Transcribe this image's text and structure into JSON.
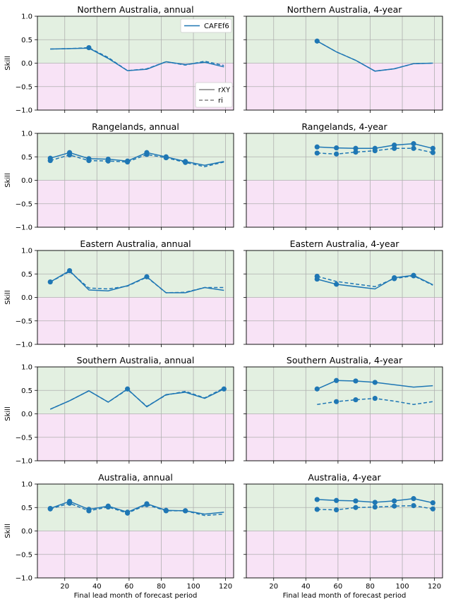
{
  "figure": {
    "ylabel": "Skill",
    "xlabel": "Final lead month of forecast period",
    "legend_model": "CAFEf6",
    "legend_rxy": "rXY",
    "legend_ri": "ri",
    "colors": {
      "line": "#1f77b4",
      "positive_bg": "#e3f0e1",
      "negative_bg": "#f8e3f6",
      "grid": "#b0b0b0",
      "legend_gray": "#808080"
    }
  },
  "chart_data": [
    {
      "type": "line",
      "title": "Northern Australia, annual",
      "xlim": [
        3,
        125
      ],
      "ylim": [
        -1,
        1
      ],
      "xticks": [
        20,
        40,
        60,
        80,
        100,
        120
      ],
      "yticks": [
        -1.0,
        -0.5,
        0.0,
        0.5,
        1.0
      ],
      "x": [
        11,
        23,
        35,
        47,
        59,
        71,
        83,
        95,
        107,
        119
      ],
      "series": [
        {
          "name": "rXY",
          "style": "solid",
          "values": [
            0.3,
            0.31,
            0.32,
            0.1,
            -0.16,
            -0.13,
            0.03,
            -0.03,
            0.02,
            -0.08
          ]
        },
        {
          "name": "ri",
          "style": "dashed",
          "values": [
            0.3,
            0.31,
            0.33,
            0.12,
            -0.16,
            -0.12,
            0.03,
            -0.04,
            0.04,
            -0.05
          ]
        }
      ],
      "markers_x": [
        35
      ],
      "markers_y": [
        0.33
      ]
    },
    {
      "type": "line",
      "title": "Northern Australia, 4-year",
      "xlim": [
        3,
        125
      ],
      "ylim": [
        -1,
        1
      ],
      "xticks": [
        20,
        40,
        60,
        80,
        100,
        120
      ],
      "yticks": [
        -1.0,
        -0.5,
        0.0,
        0.5,
        1.0
      ],
      "x": [
        47,
        59,
        71,
        83,
        95,
        107,
        119
      ],
      "series": [
        {
          "name": "rXY",
          "style": "solid",
          "values": [
            0.47,
            0.24,
            0.06,
            -0.17,
            -0.12,
            -0.01,
            0.0
          ]
        },
        {
          "name": "ri",
          "style": "dashed",
          "values": [
            0.47,
            0.24,
            0.06,
            -0.17,
            -0.12,
            -0.01,
            0.0
          ]
        }
      ],
      "markers_x": [
        47
      ],
      "markers_y": [
        0.47
      ]
    },
    {
      "type": "line",
      "title": "Rangelands, annual",
      "xlim": [
        3,
        125
      ],
      "ylim": [
        -1,
        1
      ],
      "xticks": [
        20,
        40,
        60,
        80,
        100,
        120
      ],
      "yticks": [
        -1.0,
        -0.5,
        0.0,
        0.5,
        1.0
      ],
      "x": [
        11,
        23,
        35,
        47,
        59,
        71,
        83,
        95,
        107,
        119
      ],
      "series": [
        {
          "name": "rXY",
          "style": "solid",
          "values": [
            0.47,
            0.59,
            0.46,
            0.45,
            0.41,
            0.59,
            0.5,
            0.4,
            0.32,
            0.4
          ]
        },
        {
          "name": "ri",
          "style": "dashed",
          "values": [
            0.42,
            0.54,
            0.42,
            0.41,
            0.39,
            0.55,
            0.48,
            0.38,
            0.29,
            0.39
          ]
        }
      ],
      "markers_x": [
        11,
        23,
        35,
        47,
        59,
        71,
        83,
        95,
        11,
        23,
        35,
        47,
        59,
        71,
        83,
        95
      ],
      "markers_y": [
        0.47,
        0.59,
        0.46,
        0.45,
        0.41,
        0.59,
        0.5,
        0.4,
        0.42,
        0.54,
        0.42,
        0.41,
        0.39,
        0.55,
        0.48,
        0.38
      ]
    },
    {
      "type": "line",
      "title": "Rangelands, 4-year",
      "xlim": [
        3,
        125
      ],
      "ylim": [
        -1,
        1
      ],
      "xticks": [
        20,
        40,
        60,
        80,
        100,
        120
      ],
      "yticks": [
        -1.0,
        -0.5,
        0.0,
        0.5,
        1.0
      ],
      "x": [
        47,
        59,
        71,
        83,
        95,
        107,
        119
      ],
      "series": [
        {
          "name": "rXY",
          "style": "solid",
          "values": [
            0.71,
            0.69,
            0.68,
            0.68,
            0.75,
            0.78,
            0.68
          ]
        },
        {
          "name": "ri",
          "style": "dashed",
          "values": [
            0.58,
            0.56,
            0.6,
            0.63,
            0.68,
            0.68,
            0.59
          ]
        }
      ],
      "markers_x": [
        47,
        59,
        71,
        83,
        95,
        107,
        119,
        47,
        59,
        71,
        83,
        95,
        107,
        119
      ],
      "markers_y": [
        0.71,
        0.69,
        0.68,
        0.68,
        0.75,
        0.78,
        0.68,
        0.58,
        0.56,
        0.6,
        0.63,
        0.68,
        0.68,
        0.59
      ]
    },
    {
      "type": "line",
      "title": "Eastern Australia, annual",
      "xlim": [
        3,
        125
      ],
      "ylim": [
        -1,
        1
      ],
      "xticks": [
        20,
        40,
        60,
        80,
        100,
        120
      ],
      "yticks": [
        -1.0,
        -0.5,
        0.0,
        0.5,
        1.0
      ],
      "x": [
        11,
        23,
        35,
        47,
        59,
        71,
        83,
        95,
        107,
        119
      ],
      "series": [
        {
          "name": "rXY",
          "style": "solid",
          "values": [
            0.33,
            0.57,
            0.16,
            0.14,
            0.25,
            0.44,
            0.1,
            0.1,
            0.21,
            0.15
          ]
        },
        {
          "name": "ri",
          "style": "dashed",
          "values": [
            0.33,
            0.55,
            0.2,
            0.18,
            0.24,
            0.43,
            0.1,
            0.11,
            0.21,
            0.21
          ]
        }
      ],
      "markers_x": [
        11,
        23,
        71
      ],
      "markers_y": [
        0.33,
        0.57,
        0.44
      ]
    },
    {
      "type": "line",
      "title": "Eastern Australia, 4-year",
      "xlim": [
        3,
        125
      ],
      "ylim": [
        -1,
        1
      ],
      "xticks": [
        20,
        40,
        60,
        80,
        100,
        120
      ],
      "yticks": [
        -1.0,
        -0.5,
        0.0,
        0.5,
        1.0
      ],
      "x": [
        47,
        59,
        83,
        95,
        107,
        119
      ],
      "series": [
        {
          "name": "rXY",
          "style": "solid",
          "values": [
            0.39,
            0.28,
            0.18,
            0.42,
            0.47,
            0.27
          ]
        },
        {
          "name": "ri",
          "style": "dashed",
          "values": [
            0.45,
            0.34,
            0.23,
            0.4,
            0.46,
            0.26
          ]
        }
      ],
      "markers_x": [
        47,
        59,
        95,
        107,
        47,
        95,
        107
      ],
      "markers_y": [
        0.45,
        0.28,
        0.42,
        0.47,
        0.39,
        0.4,
        0.46
      ]
    },
    {
      "type": "line",
      "title": "Southern Australia, annual",
      "xlim": [
        3,
        125
      ],
      "ylim": [
        -1,
        1
      ],
      "xticks": [
        20,
        40,
        60,
        80,
        100,
        120
      ],
      "yticks": [
        -1.0,
        -0.5,
        0.0,
        0.5,
        1.0
      ],
      "x": [
        11,
        23,
        35,
        47,
        59,
        71,
        83,
        95,
        107,
        119
      ],
      "series": [
        {
          "name": "rXY",
          "style": "solid",
          "values": [
            0.1,
            0.28,
            0.49,
            0.25,
            0.53,
            0.15,
            0.41,
            0.46,
            0.33,
            0.53
          ]
        },
        {
          "name": "ri",
          "style": "dashed",
          "values": [
            0.1,
            0.28,
            0.49,
            0.25,
            0.52,
            0.16,
            0.4,
            0.48,
            0.34,
            0.55
          ]
        }
      ],
      "markers_x": [
        59,
        119
      ],
      "markers_y": [
        0.53,
        0.53
      ]
    },
    {
      "type": "line",
      "title": "Southern Australia, 4-year",
      "xlim": [
        3,
        125
      ],
      "ylim": [
        -1,
        1
      ],
      "xticks": [
        20,
        40,
        60,
        80,
        100,
        120
      ],
      "yticks": [
        -1.0,
        -0.5,
        0.0,
        0.5,
        1.0
      ],
      "x": [
        47,
        59,
        71,
        83,
        95,
        107,
        119
      ],
      "series": [
        {
          "name": "rXY",
          "style": "solid",
          "values": [
            0.53,
            0.71,
            0.7,
            0.67,
            0.62,
            0.57,
            0.6
          ]
        },
        {
          "name": "ri",
          "style": "dashed",
          "values": [
            0.2,
            0.26,
            0.3,
            0.33,
            0.27,
            0.2,
            0.26
          ]
        }
      ],
      "markers_x": [
        47,
        59,
        71,
        83,
        59,
        71,
        83
      ],
      "markers_y": [
        0.53,
        0.71,
        0.7,
        0.67,
        0.26,
        0.3,
        0.33
      ]
    },
    {
      "type": "line",
      "title": "Australia, annual",
      "xlim": [
        3,
        125
      ],
      "ylim": [
        -1,
        1
      ],
      "xticks": [
        20,
        40,
        60,
        80,
        100,
        120
      ],
      "yticks": [
        -1.0,
        -0.5,
        0.0,
        0.5,
        1.0
      ],
      "x": [
        11,
        23,
        35,
        47,
        59,
        71,
        83,
        95,
        107,
        119
      ],
      "series": [
        {
          "name": "rXY",
          "style": "solid",
          "values": [
            0.48,
            0.63,
            0.46,
            0.53,
            0.4,
            0.58,
            0.44,
            0.43,
            0.36,
            0.4
          ]
        },
        {
          "name": "ri",
          "style": "dashed",
          "values": [
            0.47,
            0.59,
            0.43,
            0.51,
            0.38,
            0.56,
            0.43,
            0.43,
            0.33,
            0.36
          ]
        }
      ],
      "markers_x": [
        11,
        23,
        35,
        47,
        59,
        71,
        83,
        95,
        11,
        23,
        35,
        47,
        59,
        71,
        83,
        95
      ],
      "markers_y": [
        0.48,
        0.63,
        0.46,
        0.53,
        0.4,
        0.58,
        0.44,
        0.43,
        0.47,
        0.59,
        0.43,
        0.51,
        0.38,
        0.56,
        0.43,
        0.43
      ]
    },
    {
      "type": "line",
      "title": "Australia, 4-year",
      "xlim": [
        3,
        125
      ],
      "ylim": [
        -1,
        1
      ],
      "xticks": [
        20,
        40,
        60,
        80,
        100,
        120
      ],
      "yticks": [
        -1.0,
        -0.5,
        0.0,
        0.5,
        1.0
      ],
      "x": [
        47,
        59,
        71,
        83,
        95,
        107,
        119
      ],
      "series": [
        {
          "name": "rXY",
          "style": "solid",
          "values": [
            0.67,
            0.65,
            0.64,
            0.61,
            0.64,
            0.69,
            0.6
          ]
        },
        {
          "name": "ri",
          "style": "dashed",
          "values": [
            0.46,
            0.45,
            0.5,
            0.51,
            0.53,
            0.54,
            0.47
          ]
        }
      ],
      "markers_x": [
        47,
        59,
        71,
        83,
        95,
        107,
        119,
        47,
        59,
        71,
        83,
        95,
        107,
        119
      ],
      "markers_y": [
        0.67,
        0.65,
        0.64,
        0.61,
        0.64,
        0.69,
        0.6,
        0.46,
        0.45,
        0.5,
        0.51,
        0.53,
        0.54,
        0.47
      ]
    }
  ]
}
